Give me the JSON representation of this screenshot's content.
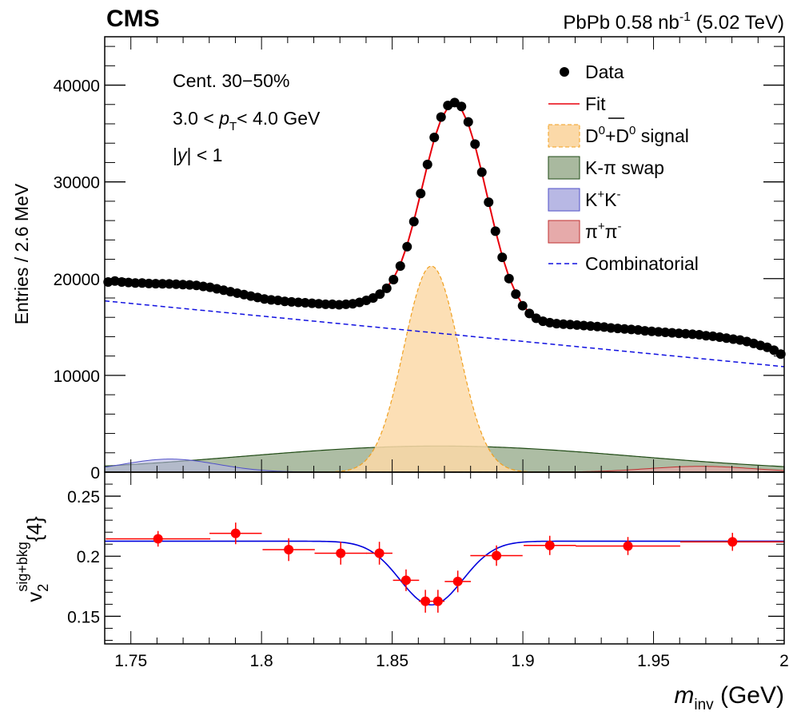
{
  "header": {
    "experiment": "CMS",
    "lumi_prefix": "PbPb 0.58 nb",
    "lumi_exp": "-1",
    "lumi_suffix": " (5.02 TeV)"
  },
  "annotations": {
    "centrality": "Cent. 30−50%",
    "pt_pre": "3.0 < ",
    "pt_var": "p",
    "pt_sub": "T",
    "pt_post": "< 4.0 GeV",
    "y_pre": "|",
    "y_var": "y",
    "y_post": "| < 1"
  },
  "legend": {
    "data": "Data",
    "fit": "Fit",
    "signal": "D⁰+D̅⁰ signal",
    "signal_a": "D",
    "signal_a_sup": "0",
    "signal_b": "+D",
    "signal_b_sup": "0",
    "signal_c": " signal",
    "swap": "K-π swap",
    "kk_a": "K",
    "kk_a_sup": "+",
    "kk_b": "K",
    "kk_b_sup": "-",
    "pipi_a": "π",
    "pipi_a_sup": "+",
    "pipi_b": "π",
    "pipi_b_sup": "-",
    "combinatorial": "Combinatorial"
  },
  "axes": {
    "top_ylabel": "Entries / 2.6 MeV",
    "bottom_ylabel_base": "v",
    "bottom_ylabel_sub": "2",
    "bottom_ylabel_sup": "sig+bkg",
    "bottom_ylabel_tail": "{4}",
    "xlabel_var": "m",
    "xlabel_sub": "inv",
    "xlabel_unit": " (GeV)"
  },
  "colors": {
    "data": "#000000",
    "fit": "#e8000b",
    "signal_fill": "#fbd9a8",
    "signal_line": "#f0a020",
    "swap_fill": "#a9b99f",
    "swap_line": "#1f4a14",
    "kk_fill": "#b8b8e4",
    "kk_line": "#5050c8",
    "pipi_fill": "#e6aaaa",
    "pipi_line": "#c03030",
    "comb": "#1010e0",
    "v2_points": "#ff0000",
    "v2_fit": "#0000dd"
  },
  "chart_data": [
    {
      "type": "line",
      "panel": "mass-spectrum",
      "xlabel": "m_inv (GeV)",
      "ylabel": "Entries / 2.6 MeV",
      "xlim": [
        1.74,
        2.0
      ],
      "ylim": [
        0,
        45000
      ],
      "x_ticks": [
        1.75,
        1.8,
        1.85,
        1.9,
        1.95,
        2.0
      ],
      "x_tick_labels": [
        "1.75",
        "1.8",
        "1.85",
        "1.9",
        "1.95",
        "2"
      ],
      "y_ticks": [
        0,
        10000,
        20000,
        30000,
        40000
      ],
      "y_tick_labels": [
        "0",
        "10000",
        "20000",
        "30000",
        "40000"
      ],
      "data_x": [
        1.7413,
        1.7439,
        1.7465,
        1.7491,
        1.7517,
        1.7543,
        1.7569,
        1.7595,
        1.7621,
        1.7647,
        1.7673,
        1.7699,
        1.7725,
        1.7751,
        1.7777,
        1.7803,
        1.7829,
        1.7855,
        1.7881,
        1.7907,
        1.7933,
        1.7959,
        1.7985,
        1.8011,
        1.8037,
        1.8063,
        1.8089,
        1.8115,
        1.8141,
        1.8167,
        1.8193,
        1.8219,
        1.8245,
        1.8271,
        1.8297,
        1.8323,
        1.8349,
        1.8375,
        1.8401,
        1.8427,
        1.8453,
        1.8479,
        1.8505,
        1.8531,
        1.8557,
        1.8583,
        1.8609,
        1.8635,
        1.8661,
        1.8687,
        1.8713,
        1.8739,
        1.8765,
        1.8791,
        1.8817,
        1.8843,
        1.8869,
        1.8895,
        1.8921,
        1.8947,
        1.8973,
        1.8999,
        1.9025,
        1.9051,
        1.9077,
        1.9103,
        1.9129,
        1.9155,
        1.9181,
        1.9207,
        1.9233,
        1.9259,
        1.9285,
        1.9311,
        1.9337,
        1.9363,
        1.9389,
        1.9415,
        1.9441,
        1.9467,
        1.9493,
        1.9519,
        1.9545,
        1.9571,
        1.9597,
        1.9623,
        1.9649,
        1.9675,
        1.9701,
        1.9727,
        1.9753,
        1.9779,
        1.9805,
        1.9831,
        1.9857,
        1.9883,
        1.9909,
        1.9935,
        1.9961,
        1.9987
      ],
      "data_y": [
        19650,
        19750,
        19650,
        19600,
        19550,
        19550,
        19500,
        19480,
        19470,
        19460,
        19420,
        19380,
        19350,
        19300,
        19200,
        19100,
        18950,
        18800,
        18650,
        18500,
        18350,
        18200,
        18050,
        17900,
        17800,
        17750,
        17650,
        17600,
        17550,
        17500,
        17450,
        17400,
        17350,
        17350,
        17300,
        17350,
        17400,
        17550,
        17750,
        18000,
        18400,
        19000,
        19900,
        21300,
        23300,
        25900,
        28800,
        31800,
        34600,
        36700,
        37900,
        38200,
        37800,
        36200,
        33900,
        31000,
        27900,
        24900,
        22200,
        20000,
        18400,
        17200,
        16400,
        15900,
        15600,
        15450,
        15350,
        15300,
        15250,
        15200,
        15150,
        15100,
        15050,
        15000,
        14900,
        14850,
        14800,
        14750,
        14700,
        14600,
        14550,
        14500,
        14450,
        14400,
        14350,
        14300,
        14250,
        14200,
        14100,
        14050,
        13950,
        13850,
        13750,
        13650,
        13500,
        13300,
        13100,
        12900,
        12600,
        12200
      ],
      "fit": "smooth curve through data",
      "combinatorial": {
        "x": [
          1.74,
          2.0
        ],
        "y": [
          17700,
          10900
        ]
      },
      "signal": {
        "mean": 1.865,
        "sigma": 0.0105,
        "peak": 21300
      },
      "kpi_swap": {
        "mean": 1.868,
        "sigma": 0.075,
        "peak": 2700
      },
      "kk": {
        "mean": 1.765,
        "sigma": 0.018,
        "peak": 1350
      },
      "pipi": {
        "mean": 1.968,
        "sigma": 0.02,
        "peak": 600
      }
    },
    {
      "type": "scatter",
      "panel": "v2",
      "xlabel": "m_inv (GeV)",
      "ylabel": "v2^{sig+bkg}{4}",
      "xlim": [
        1.74,
        2.0
      ],
      "ylim": [
        0.127,
        0.27
      ],
      "y_ticks": [
        0.15,
        0.2,
        0.25
      ],
      "y_tick_labels": [
        "0.15",
        "0.2",
        "0.25"
      ],
      "points": [
        {
          "x": 1.7604,
          "xerr": 0.02,
          "y": 0.2145,
          "yerr": 0.0065
        },
        {
          "x": 1.7901,
          "xerr": 0.01,
          "y": 0.219,
          "yerr": 0.009
        },
        {
          "x": 1.8104,
          "xerr": 0.01,
          "y": 0.2055,
          "yerr": 0.0095
        },
        {
          "x": 1.8303,
          "xerr": 0.01,
          "y": 0.2025,
          "yerr": 0.0095
        },
        {
          "x": 1.8451,
          "xerr": 0.005,
          "y": 0.2025,
          "yerr": 0.0095
        },
        {
          "x": 1.8553,
          "xerr": 0.005,
          "y": 0.18,
          "yerr": 0.009
        },
        {
          "x": 1.8627,
          "xerr": 0.0025,
          "y": 0.1625,
          "yerr": 0.0095
        },
        {
          "x": 1.8675,
          "xerr": 0.0025,
          "y": 0.1625,
          "yerr": 0.0095
        },
        {
          "x": 1.8751,
          "xerr": 0.005,
          "y": 0.179,
          "yerr": 0.009
        },
        {
          "x": 1.8899,
          "xerr": 0.01,
          "y": 0.2005,
          "yerr": 0.0085
        },
        {
          "x": 1.9103,
          "xerr": 0.01,
          "y": 0.209,
          "yerr": 0.008
        },
        {
          "x": 1.9402,
          "xerr": 0.02,
          "y": 0.2085,
          "yerr": 0.0075
        },
        {
          "x": 1.9802,
          "xerr": 0.02,
          "y": 0.212,
          "yerr": 0.0075
        }
      ],
      "fit_curve": {
        "base": 0.2125,
        "dip_mean": 1.865,
        "dip_sigma": 0.012,
        "dip_depth": 0.053
      }
    }
  ]
}
